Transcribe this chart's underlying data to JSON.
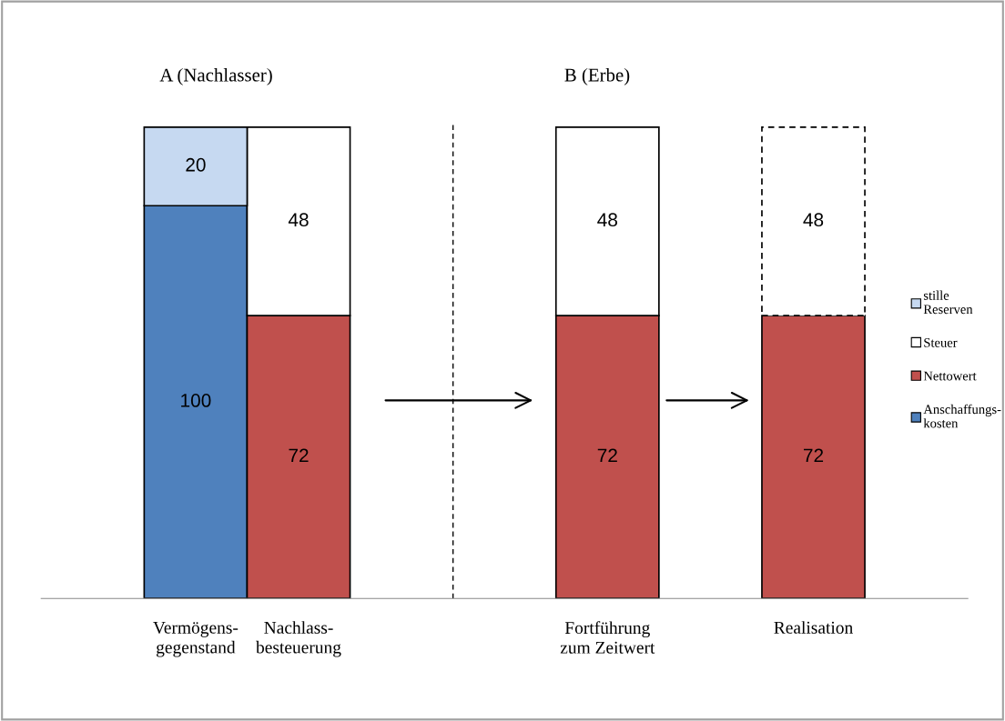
{
  "chart_data": {
    "type": "bar",
    "stacked": true,
    "data_labels": true,
    "legend": "right",
    "grid": false,
    "categories": [
      "Vermögens-\ngegenstand",
      "Nachlass-\nbesteuerung",
      null,
      null,
      "Fortführung\nzum Zeitwert",
      null,
      "Realisation"
    ],
    "series": [
      {
        "name": "Anschaffungs-\nkosten",
        "color": "#4f81bd",
        "values": [
          100,
          null,
          null,
          null,
          null,
          null,
          null
        ]
      },
      {
        "name": "Nettowert",
        "color": "#c0504d",
        "values": [
          null,
          72,
          null,
          null,
          72,
          null,
          72
        ]
      },
      {
        "name": "Steuer",
        "color": "#ffffff",
        "values": [
          null,
          48,
          null,
          null,
          48,
          null,
          48
        ],
        "line_style": [
          null,
          "solid",
          null,
          null,
          "solid",
          null,
          "dashed"
        ]
      },
      {
        "name": "stille\nReserven",
        "color": "#c6d9f1",
        "values": [
          20,
          null,
          null,
          null,
          null,
          null,
          null
        ]
      }
    ],
    "annotations": [
      "A (Nachlasser)",
      "B (Erbe)"
    ]
  }
}
